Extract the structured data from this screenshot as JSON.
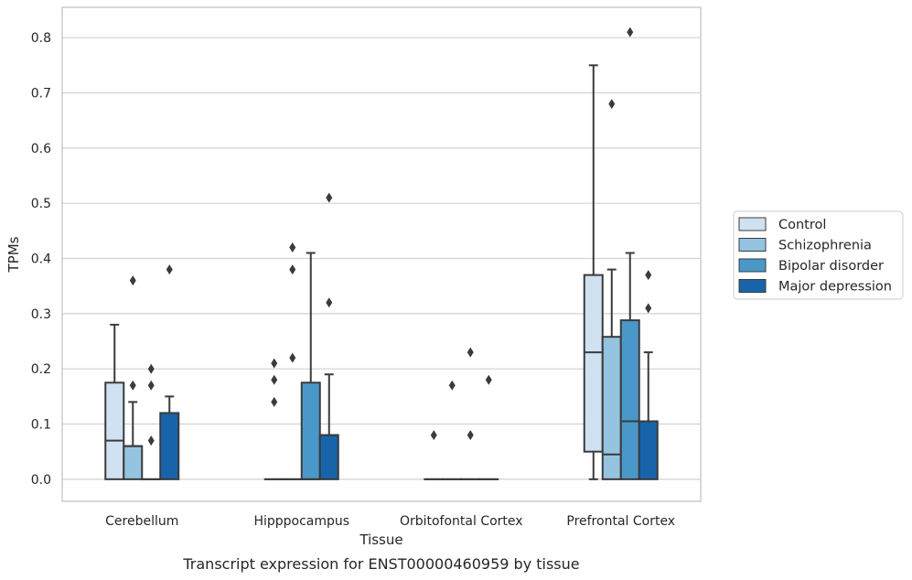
{
  "caption": "Transcript expression for ENST00000460959 by tissue",
  "chart_data": {
    "type": "box",
    "xlabel": "Tissue",
    "ylabel": "TPMs",
    "ylim": [
      -0.04,
      0.855
    ],
    "yticks": [
      0.0,
      0.1,
      0.2,
      0.3,
      0.4,
      0.5,
      0.6,
      0.7,
      0.8
    ],
    "ytick_labels": [
      "0.0",
      "0.1",
      "0.2",
      "0.3",
      "0.4",
      "0.5",
      "0.6",
      "0.7",
      "0.8"
    ],
    "grid": "horizontal",
    "legend_position": "right",
    "categories": [
      "Cerebellum",
      "Hipppocampus",
      "Orbitofontal Cortex",
      "Prefrontal Cortex"
    ],
    "series": [
      {
        "name": "Control",
        "color": "#d0e1f2",
        "boxes": [
          {
            "q1": 0.0,
            "median": 0.07,
            "q3": 0.175,
            "whisker_low": 0.0,
            "whisker_high": 0.28,
            "outliers": []
          },
          {
            "q1": 0.0,
            "median": 0.0,
            "q3": 0.0,
            "whisker_low": 0.0,
            "whisker_high": 0.0,
            "outliers": [
              0.14,
              0.18,
              0.21
            ]
          },
          {
            "q1": 0.0,
            "median": 0.0,
            "q3": 0.0,
            "whisker_low": 0.0,
            "whisker_high": 0.0,
            "outliers": [
              0.08
            ]
          },
          {
            "q1": 0.05,
            "median": 0.23,
            "q3": 0.37,
            "whisker_low": 0.0,
            "whisker_high": 0.75,
            "outliers": []
          }
        ]
      },
      {
        "name": "Schizophrenia",
        "color": "#94c4df",
        "boxes": [
          {
            "q1": 0.0,
            "median": 0.06,
            "q3": 0.06,
            "whisker_low": 0.0,
            "whisker_high": 0.14,
            "outliers": [
              0.17,
              0.36
            ]
          },
          {
            "q1": 0.0,
            "median": 0.0,
            "q3": 0.0,
            "whisker_low": 0.0,
            "whisker_high": 0.0,
            "outliers": [
              0.22,
              0.38,
              0.42
            ]
          },
          {
            "q1": 0.0,
            "median": 0.0,
            "q3": 0.0,
            "whisker_low": 0.0,
            "whisker_high": 0.0,
            "outliers": [
              0.17
            ]
          },
          {
            "q1": 0.0,
            "median": 0.045,
            "q3": 0.258,
            "whisker_low": 0.0,
            "whisker_high": 0.38,
            "outliers": [
              0.68
            ]
          }
        ]
      },
      {
        "name": "Bipolar disorder",
        "color": "#4a98c9",
        "boxes": [
          {
            "q1": 0.0,
            "median": 0.0,
            "q3": 0.0,
            "whisker_low": 0.0,
            "whisker_high": 0.0,
            "outliers": [
              0.07,
              0.17,
              0.2
            ]
          },
          {
            "q1": 0.0,
            "median": 0.0,
            "q3": 0.175,
            "whisker_low": 0.0,
            "whisker_high": 0.41,
            "outliers": []
          },
          {
            "q1": 0.0,
            "median": 0.0,
            "q3": 0.0,
            "whisker_low": 0.0,
            "whisker_high": 0.0,
            "outliers": [
              0.08,
              0.23
            ]
          },
          {
            "q1": 0.0,
            "median": 0.105,
            "q3": 0.288,
            "whisker_low": 0.0,
            "whisker_high": 0.41,
            "outliers": [
              0.81
            ]
          }
        ]
      },
      {
        "name": "Major depression",
        "color": "#1764ab",
        "boxes": [
          {
            "q1": 0.0,
            "median": 0.12,
            "q3": 0.12,
            "whisker_low": 0.0,
            "whisker_high": 0.15,
            "outliers": [
              0.38
            ]
          },
          {
            "q1": 0.0,
            "median": 0.08,
            "q3": 0.08,
            "whisker_low": 0.0,
            "whisker_high": 0.19,
            "outliers": [
              0.32,
              0.51
            ]
          },
          {
            "q1": 0.0,
            "median": 0.0,
            "q3": 0.0,
            "whisker_low": 0.0,
            "whisker_high": 0.0,
            "outliers": [
              0.18
            ]
          },
          {
            "q1": 0.0,
            "median": 0.105,
            "q3": 0.105,
            "whisker_low": 0.0,
            "whisker_high": 0.23,
            "outliers": [
              0.31,
              0.37
            ]
          }
        ]
      }
    ]
  }
}
